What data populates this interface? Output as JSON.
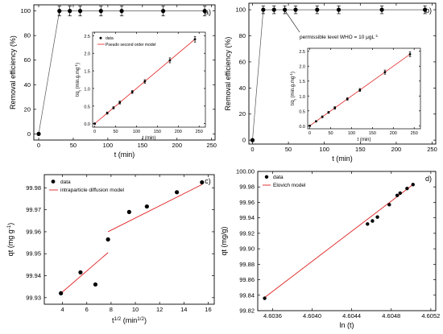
{
  "chart_data": [
    {
      "type": "scatter",
      "panel_label": "a)",
      "xlabel": "t (min)",
      "ylabel": "Removal efficiency (%)",
      "xlim": [
        -7,
        255
      ],
      "ylim": [
        -5,
        105
      ],
      "xticks": [
        "0",
        "50",
        "100",
        "150",
        "200",
        "250"
      ],
      "yticks": [
        "0",
        "20",
        "40",
        "60",
        "80",
        "100"
      ],
      "series": [
        {
          "x": [
            0,
            30,
            45,
            60,
            90,
            120,
            180,
            240
          ],
          "y": [
            0,
            100,
            100,
            100,
            100,
            100,
            100,
            100
          ],
          "errors": [
            0,
            4,
            4,
            4,
            4,
            4,
            4,
            4
          ]
        }
      ],
      "inset": {
        "xlabel": "t (min)",
        "ylabel": "t/q",
        "ylabel_sub": "t",
        "ylabel_tail": " (min.g.mg",
        "ylabel_sup": "-1",
        "ylabel_end": ")",
        "xlim": [
          -5,
          265
        ],
        "ylim": [
          -0.1,
          2.6
        ],
        "xticks": [
          "0",
          "50",
          "100",
          "150",
          "200",
          "250"
        ],
        "yticks": [
          "0.0",
          "0.5",
          "1.0",
          "1.5",
          "2.0",
          "2.5"
        ],
        "legend": [
          "data",
          "Pseudo second order model"
        ],
        "series": [
          {
            "x": [
              0,
              30,
              45,
              60,
              90,
              120,
              180,
              240
            ],
            "y": [
              0,
              0.3,
              0.45,
              0.6,
              0.9,
              1.2,
              1.8,
              2.4
            ],
            "errors": [
              0.02,
              0.03,
              0.03,
              0.04,
              0.04,
              0.05,
              0.07,
              0.08
            ]
          }
        ],
        "fit": [
          [
            0,
            0
          ],
          [
            240,
            2.4
          ]
        ]
      }
    },
    {
      "type": "scatter",
      "panel_label": "b)",
      "xlabel": "t (min)",
      "ylabel": "Removal efficiency (%)",
      "xlim": [
        -5,
        255
      ],
      "ylim": [
        -3,
        105
      ],
      "xticks": [
        "0",
        "50",
        "100",
        "150",
        "200",
        "250"
      ],
      "yticks": [
        "0",
        "20",
        "40",
        "60",
        "80",
        "100"
      ],
      "annotation": "permissible level WHO = 10 μgL",
      "annotation_sup": "-1",
      "series": [
        {
          "x": [
            0,
            15,
            30,
            45,
            60,
            90,
            120,
            180,
            240
          ],
          "y": [
            0,
            100,
            100,
            100,
            100,
            100,
            100,
            100,
            100
          ],
          "errors": [
            0,
            3,
            3,
            3,
            3,
            3,
            3,
            3,
            3
          ]
        }
      ],
      "inset": {
        "xlabel": "t (min)",
        "ylabel": "t/q",
        "ylabel_sub": "t",
        "ylabel_tail": " (min.g.mg",
        "ylabel_sup": "-1",
        "ylabel_end": ")",
        "xlim": [
          -5,
          265
        ],
        "ylim": [
          -0.1,
          2.6
        ],
        "xticks": [
          "0",
          "50",
          "100",
          "150",
          "200",
          "250"
        ],
        "yticks": [
          "0.0",
          "0.5",
          "1.0",
          "1.5",
          "2.0",
          "2.5"
        ],
        "series": [
          {
            "x": [
              0,
              15,
              30,
              45,
              60,
              90,
              120,
              180,
              240
            ],
            "y": [
              0,
              0.15,
              0.3,
              0.45,
              0.6,
              0.9,
              1.2,
              1.8,
              2.4
            ],
            "errors": [
              0.02,
              0.02,
              0.03,
              0.03,
              0.04,
              0.04,
              0.05,
              0.07,
              0.08
            ]
          }
        ],
        "fit": [
          [
            0,
            0
          ],
          [
            240,
            2.4
          ]
        ]
      }
    },
    {
      "type": "scatter",
      "panel_label": "c)",
      "xlabel": "t",
      "xlabel_sup": "1/2",
      "xlabel_tail": " (min",
      "xlabel_sup2": "1/2",
      "xlabel_end": ")",
      "ylabel": "qt (mg g",
      "ylabel_sup": "-1",
      "ylabel_end": ")",
      "xlim": [
        2.5,
        16.5
      ],
      "ylim": [
        99.927,
        99.986
      ],
      "xticks": [
        "4",
        "6",
        "8",
        "10",
        "12",
        "14",
        "16"
      ],
      "yticks": [
        "99.93",
        "99.94",
        "99.95",
        "99.96",
        "99.97",
        "99.98"
      ],
      "legend": [
        "data",
        "intraparticle diffusion model"
      ],
      "series": [
        {
          "x": [
            3.87,
            5.48,
            6.71,
            7.75,
            9.49,
            10.95,
            13.42,
            15.49
          ],
          "y": [
            99.932,
            99.9415,
            99.936,
            99.9565,
            99.969,
            99.9715,
            99.978,
            99.9825
          ]
        }
      ],
      "fits": [
        [
          [
            3.87,
            99.932
          ],
          [
            7.75,
            99.9505
          ]
        ],
        [
          [
            7.75,
            99.96
          ],
          [
            15.49,
            99.9815
          ]
        ]
      ]
    },
    {
      "type": "scatter",
      "panel_label": "d)",
      "xlabel": "ln (t)",
      "ylabel": "qt (mg/g)",
      "xlim": [
        4.60345,
        4.60525
      ],
      "ylim": [
        99.82,
        100.0
      ],
      "xticks": [
        "4.6036",
        "4.6040",
        "4.6044",
        "4.6048",
        "4.6052"
      ],
      "yticks": [
        "99.82",
        "99.84",
        "99.86",
        "99.88",
        "99.90",
        "99.92",
        "99.94",
        "99.96",
        "99.98",
        "100.00"
      ],
      "legend": [
        "data",
        "Elovich model"
      ],
      "series": [
        {
          "x": [
            4.60352,
            4.60456,
            4.60461,
            4.60466,
            4.60478,
            4.60486,
            4.60489,
            4.60496,
            4.60502
          ],
          "y": [
            99.836,
            99.932,
            99.936,
            99.941,
            99.957,
            99.969,
            99.972,
            99.978,
            99.983
          ]
        }
      ],
      "fit": [
        [
          4.60352,
          99.837
        ],
        [
          4.60502,
          99.983
        ]
      ]
    }
  ]
}
